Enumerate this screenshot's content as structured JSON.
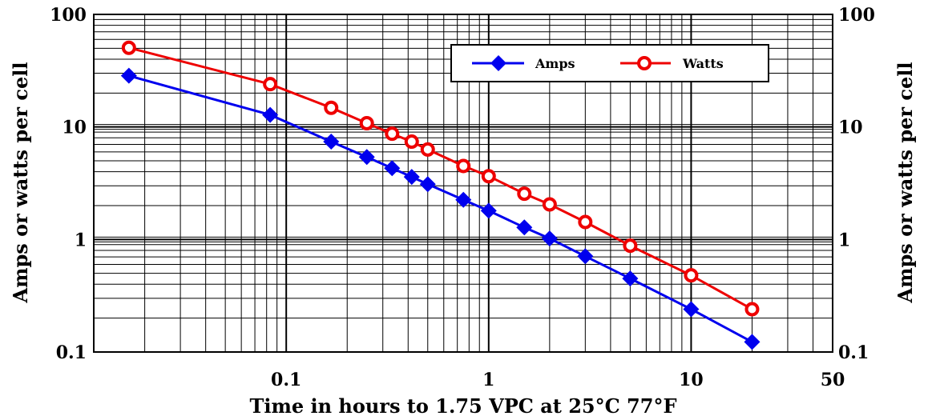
{
  "chart_data": {
    "type": "line",
    "x_scale": "log",
    "y_scale": "log",
    "xlabel": "Time in hours to 1.75 VPC at 25°C 77°F",
    "ylabel": "Amps or watts per cell",
    "ylabel_right": "Amps or watts per cell",
    "xlim": [
      0.0112,
      50
    ],
    "ylim": [
      0.1,
      100
    ],
    "x_ticks": [
      {
        "value": 0.1,
        "label": "0.1"
      },
      {
        "value": 1,
        "label": "1"
      },
      {
        "value": 10,
        "label": "10"
      },
      {
        "value": 50,
        "label": "50"
      }
    ],
    "y_ticks": [
      {
        "value": 0.1,
        "label": "0.1"
      },
      {
        "value": 1,
        "label": "1"
      },
      {
        "value": 10,
        "label": "10"
      },
      {
        "value": 100,
        "label": "100"
      }
    ],
    "grid": true,
    "legend_position": "top-right",
    "series": [
      {
        "name": "Amps",
        "color": "#0000ee",
        "marker": "diamond",
        "points": [
          [
            0.0167,
            28.5
          ],
          [
            0.0833,
            12.8
          ],
          [
            0.1667,
            7.4
          ],
          [
            0.25,
            5.4
          ],
          [
            0.3333,
            4.3
          ],
          [
            0.4167,
            3.6
          ],
          [
            0.5,
            3.1
          ],
          [
            0.75,
            2.25
          ],
          [
            1,
            1.8
          ],
          [
            1.5,
            1.28
          ],
          [
            2,
            1.02
          ],
          [
            3,
            0.71
          ],
          [
            5,
            0.45
          ],
          [
            10,
            0.24
          ],
          [
            20,
            0.123
          ]
        ]
      },
      {
        "name": "Watts",
        "color": "#ee0000",
        "marker": "circle",
        "points": [
          [
            0.0167,
            50.5
          ],
          [
            0.0833,
            24
          ],
          [
            0.1667,
            14.8
          ],
          [
            0.25,
            10.8
          ],
          [
            0.3333,
            8.7
          ],
          [
            0.4167,
            7.4
          ],
          [
            0.5,
            6.3
          ],
          [
            0.75,
            4.5
          ],
          [
            1,
            3.65
          ],
          [
            1.5,
            2.55
          ],
          [
            2,
            2.05
          ],
          [
            3,
            1.43
          ],
          [
            5,
            0.88
          ],
          [
            10,
            0.48
          ],
          [
            20,
            0.24
          ]
        ]
      }
    ]
  }
}
